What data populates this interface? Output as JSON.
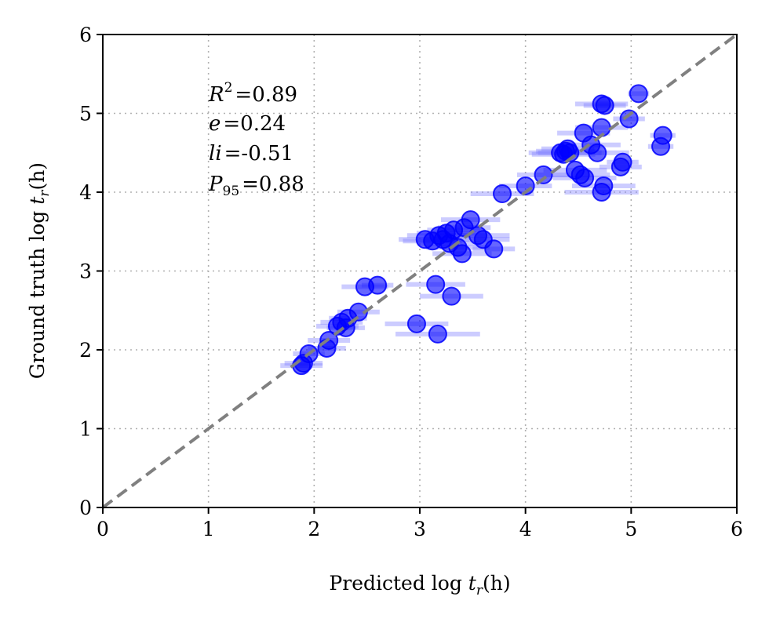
{
  "chart_data": {
    "type": "scatter",
    "xlabel": "Predicted log t_r(h)",
    "ylabel": "Ground truth log t_r(h)",
    "xlabel_prefix": "Predicted log ",
    "ylabel_prefix": "Ground truth log ",
    "label_var": "t",
    "label_sub": "r",
    "label_unit": "(h)",
    "xlim": [
      0,
      6
    ],
    "ylim": [
      0,
      6
    ],
    "xticks": [
      0,
      1,
      2,
      3,
      4,
      5,
      6
    ],
    "yticks": [
      0,
      1,
      2,
      3,
      4,
      5,
      6
    ],
    "grid": true,
    "reference_line": "y = x (gray dashed)",
    "annotations": {
      "r2": {
        "label": "R",
        "sup": "2",
        "value": "=0.89"
      },
      "e": {
        "label": "e",
        "value": "=0.24"
      },
      "li": {
        "label": "li",
        "value": "=-0.51"
      },
      "p95": {
        "label": "P",
        "sub": "95",
        "value": "=0.88"
      }
    },
    "colors": {
      "points": "#0000ff",
      "error_bars": "#7f7fff",
      "reference": "#808080",
      "grid": "#b0b0b0"
    },
    "points": [
      {
        "x": 1.88,
        "y": 1.8,
        "err": 0.2
      },
      {
        "x": 1.9,
        "y": 1.83,
        "err": 0.18
      },
      {
        "x": 1.95,
        "y": 1.95,
        "err": 0.15
      },
      {
        "x": 2.12,
        "y": 2.02,
        "err": 0.18
      },
      {
        "x": 2.14,
        "y": 2.12,
        "err": 0.2
      },
      {
        "x": 2.22,
        "y": 2.3,
        "err": 0.2
      },
      {
        "x": 2.26,
        "y": 2.35,
        "err": 0.2
      },
      {
        "x": 2.3,
        "y": 2.28,
        "err": 0.18
      },
      {
        "x": 2.32,
        "y": 2.4,
        "err": 0.18
      },
      {
        "x": 2.42,
        "y": 2.48,
        "err": 0.2
      },
      {
        "x": 2.48,
        "y": 2.8,
        "err": 0.22
      },
      {
        "x": 2.6,
        "y": 2.82,
        "err": 0.15
      },
      {
        "x": 2.97,
        "y": 2.33,
        "err": 0.3
      },
      {
        "x": 3.15,
        "y": 2.83,
        "err": 0.28
      },
      {
        "x": 3.17,
        "y": 2.2,
        "err": 0.4
      },
      {
        "x": 3.3,
        "y": 2.68,
        "err": 0.3
      },
      {
        "x": 3.05,
        "y": 3.4,
        "err": 0.25
      },
      {
        "x": 3.12,
        "y": 3.38,
        "err": 0.28
      },
      {
        "x": 3.18,
        "y": 3.45,
        "err": 0.3
      },
      {
        "x": 3.22,
        "y": 3.4,
        "err": 0.25
      },
      {
        "x": 3.25,
        "y": 3.48,
        "err": 0.28
      },
      {
        "x": 3.28,
        "y": 3.35,
        "err": 0.3
      },
      {
        "x": 3.32,
        "y": 3.52,
        "err": 0.25
      },
      {
        "x": 3.36,
        "y": 3.3,
        "err": 0.3
      },
      {
        "x": 3.4,
        "y": 3.22,
        "err": 0.28
      },
      {
        "x": 3.42,
        "y": 3.55,
        "err": 0.25
      },
      {
        "x": 3.48,
        "y": 3.65,
        "err": 0.28
      },
      {
        "x": 3.55,
        "y": 3.45,
        "err": 0.3
      },
      {
        "x": 3.6,
        "y": 3.4,
        "err": 0.25
      },
      {
        "x": 3.7,
        "y": 3.28,
        "err": 0.2
      },
      {
        "x": 3.78,
        "y": 3.98,
        "err": 0.3
      },
      {
        "x": 4.0,
        "y": 4.08,
        "err": 0.25
      },
      {
        "x": 4.17,
        "y": 4.22,
        "err": 0.25
      },
      {
        "x": 4.33,
        "y": 4.5,
        "err": 0.3
      },
      {
        "x": 4.36,
        "y": 4.48,
        "err": 0.3
      },
      {
        "x": 4.38,
        "y": 4.52,
        "err": 0.28
      },
      {
        "x": 4.4,
        "y": 4.55,
        "err": 0.25
      },
      {
        "x": 4.42,
        "y": 4.5,
        "err": 0.3
      },
      {
        "x": 4.47,
        "y": 4.28,
        "err": 0.3
      },
      {
        "x": 4.52,
        "y": 4.22,
        "err": 0.28
      },
      {
        "x": 4.56,
        "y": 4.18,
        "err": 0.3
      },
      {
        "x": 4.55,
        "y": 4.75,
        "err": 0.25
      },
      {
        "x": 4.62,
        "y": 4.6,
        "err": 0.28
      },
      {
        "x": 4.68,
        "y": 4.5,
        "err": 0.3
      },
      {
        "x": 4.72,
        "y": 4.0,
        "err": 0.35
      },
      {
        "x": 4.74,
        "y": 4.08,
        "err": 0.3
      },
      {
        "x": 4.72,
        "y": 4.82,
        "err": 0.25
      },
      {
        "x": 4.72,
        "y": 5.12,
        "err": 0.25
      },
      {
        "x": 4.75,
        "y": 5.1,
        "err": 0.2
      },
      {
        "x": 4.9,
        "y": 4.32,
        "err": 0.2
      },
      {
        "x": 4.92,
        "y": 4.38,
        "err": 0.15
      },
      {
        "x": 4.98,
        "y": 4.93,
        "err": 0.15
      },
      {
        "x": 5.07,
        "y": 5.25,
        "err": 0.1
      },
      {
        "x": 5.28,
        "y": 4.58,
        "err": 0.12
      },
      {
        "x": 5.3,
        "y": 4.72,
        "err": 0.12
      }
    ]
  }
}
